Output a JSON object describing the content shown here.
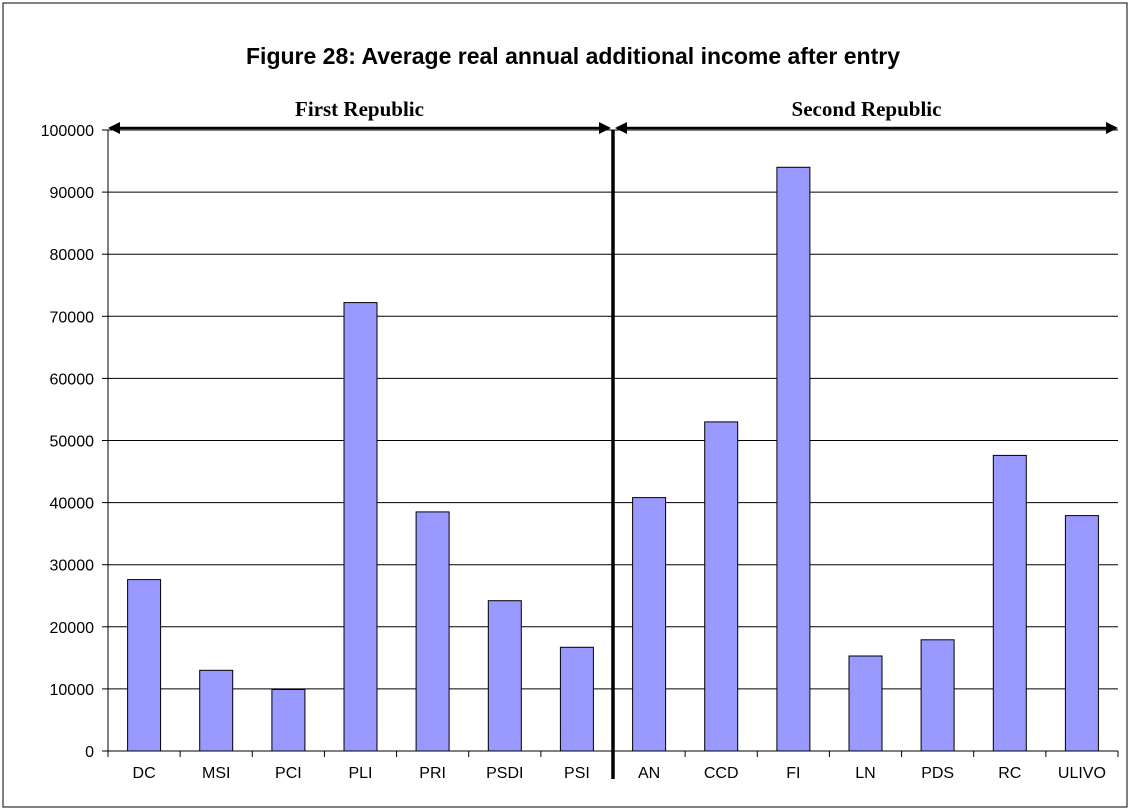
{
  "chart_data": {
    "type": "bar",
    "title": "Figure 28: Average real annual additional income after entry",
    "xlabel": "",
    "ylabel": "",
    "ylim": [
      0,
      100000
    ],
    "yticks": [
      0,
      10000,
      20000,
      30000,
      40000,
      50000,
      60000,
      70000,
      80000,
      90000,
      100000
    ],
    "grid": true,
    "legend": "none",
    "bar_color": "#9999ff",
    "categories": [
      "DC",
      "MSI",
      "PCI",
      "PLI",
      "PRI",
      "PSDI",
      "PSI",
      "AN",
      "CCD",
      "FI",
      "LN",
      "PDS",
      "RC",
      "ULIVO"
    ],
    "values": [
      27600,
      13000,
      9900,
      72200,
      38500,
      24200,
      16700,
      40800,
      53000,
      94000,
      15300,
      17900,
      47600,
      37900
    ],
    "periods": [
      {
        "label": "First Republic",
        "from_category": 0,
        "to_category": 6
      },
      {
        "label": "Second Republic",
        "from_category": 7,
        "to_category": 13
      }
    ],
    "divider_after_category": 6
  }
}
